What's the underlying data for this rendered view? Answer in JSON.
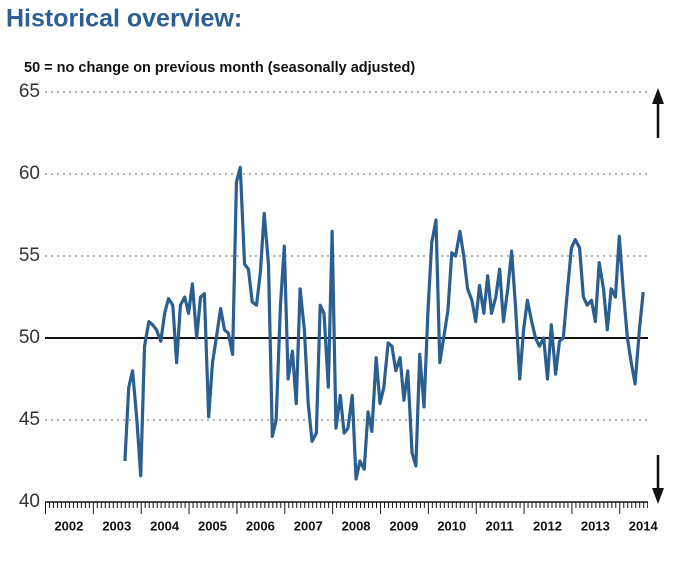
{
  "chart_data": {
    "type": "line",
    "title": "Historical overview:",
    "subtitle": "50 = no change on previous month (seasonally adjusted)",
    "x": [
      2003.67,
      2003.75,
      2003.83,
      2003.92,
      2004.0,
      2004.08,
      2004.17,
      2004.25,
      2004.33,
      2004.42,
      2004.5,
      2004.58,
      2004.67,
      2004.75,
      2004.83,
      2004.92,
      2005.0,
      2005.08,
      2005.17,
      2005.25,
      2005.33,
      2005.42,
      2005.5,
      2005.58,
      2005.67,
      2005.75,
      2005.83,
      2005.92,
      2006.0,
      2006.08,
      2006.17,
      2006.25,
      2006.33,
      2006.42,
      2006.5,
      2006.58,
      2006.67,
      2006.75,
      2006.83,
      2006.92,
      2007.0,
      2007.08,
      2007.17,
      2007.25,
      2007.33,
      2007.42,
      2007.5,
      2007.58,
      2007.67,
      2007.75,
      2007.83,
      2007.92,
      2008.0,
      2008.08,
      2008.17,
      2008.25,
      2008.33,
      2008.42,
      2008.5,
      2008.58,
      2008.67,
      2008.75,
      2008.83,
      2008.92,
      2009.0,
      2009.08,
      2009.17,
      2009.25,
      2009.33,
      2009.42,
      2009.5,
      2009.58,
      2009.67,
      2009.75,
      2009.83,
      2009.92,
      2010.0,
      2010.08,
      2010.17,
      2010.25,
      2010.33,
      2010.42,
      2010.5,
      2010.58,
      2010.67,
      2010.75,
      2010.83,
      2010.92,
      2011.0,
      2011.08,
      2011.17,
      2011.25,
      2011.33,
      2011.42,
      2011.5,
      2011.58,
      2011.67,
      2011.75,
      2011.83,
      2011.92,
      2012.0,
      2012.08,
      2012.17,
      2012.25,
      2012.33,
      2012.42,
      2012.5,
      2012.58,
      2012.67,
      2012.75,
      2012.83,
      2012.92,
      2013.0,
      2013.08,
      2013.17,
      2013.25,
      2013.33,
      2013.42,
      2013.5,
      2013.58,
      2013.67,
      2013.75,
      2013.83,
      2013.92,
      2014.0,
      2014.08,
      2014.17,
      2014.25,
      2014.33,
      2014.42,
      2014.5
    ],
    "series": [
      {
        "color": "#2b5f8f",
        "values": [
          42.5,
          47,
          48,
          45,
          41.6,
          49.5,
          51,
          50.8,
          50.5,
          49.8,
          51.5,
          52.4,
          52,
          48.5,
          52,
          52.5,
          51.5,
          53.3,
          50,
          52.5,
          52.7,
          45.2,
          48.5,
          50,
          51.8,
          50.5,
          50.3,
          49,
          59.5,
          60.4,
          54.5,
          54.2,
          52.2,
          52,
          54,
          57.6,
          54.5,
          44,
          45,
          52,
          55.6,
          47.5,
          49.2,
          46,
          53,
          50.5,
          46,
          43.7,
          44.2,
          52,
          51.5,
          47,
          56.5,
          44.5,
          46.5,
          44.2,
          44.5,
          46.5,
          41.4,
          42.5,
          42,
          45.5,
          44.3,
          48.8,
          46,
          47,
          49.7,
          49.5,
          48,
          48.8,
          46.2,
          48,
          43,
          42.2,
          49,
          45.8,
          51.5,
          55.8,
          57.2,
          48.5,
          50,
          51.7,
          55.2,
          55,
          56.5,
          55,
          53,
          52.3,
          51,
          53.2,
          51.5,
          53.8,
          51.5,
          52.5,
          54.2,
          51,
          53,
          55.3,
          52,
          47.5,
          50.5,
          52.3,
          51,
          50,
          49.5,
          50,
          47.5,
          50.8,
          47.8,
          49.8,
          50,
          53,
          55.5,
          56,
          55.5,
          52.5,
          52,
          52.3,
          51,
          54.6,
          53,
          50.5,
          53,
          52.5,
          56.2,
          53,
          50,
          48.5,
          47.2,
          50.5,
          52.8
        ]
      }
    ],
    "xlim": [
      2002,
      2014.6
    ],
    "xticks": [
      {
        "value": 2002.5,
        "label": "2002"
      },
      {
        "value": 2003.5,
        "label": "2003"
      },
      {
        "value": 2004.5,
        "label": "2004"
      },
      {
        "value": 2005.5,
        "label": "2005"
      },
      {
        "value": 2006.5,
        "label": "2006"
      },
      {
        "value": 2007.5,
        "label": "2007"
      },
      {
        "value": 2008.5,
        "label": "2008"
      },
      {
        "value": 2009.5,
        "label": "2009"
      },
      {
        "value": 2010.5,
        "label": "2010"
      },
      {
        "value": 2011.5,
        "label": "2011"
      },
      {
        "value": 2012.5,
        "label": "2012"
      },
      {
        "value": 2013.5,
        "label": "2013"
      },
      {
        "value": 2014.5,
        "label": "2014"
      }
    ],
    "ylim": [
      40,
      65
    ],
    "yticks": [
      40,
      45,
      50,
      55,
      60,
      65
    ],
    "reference_line": 50,
    "grid": true
  }
}
